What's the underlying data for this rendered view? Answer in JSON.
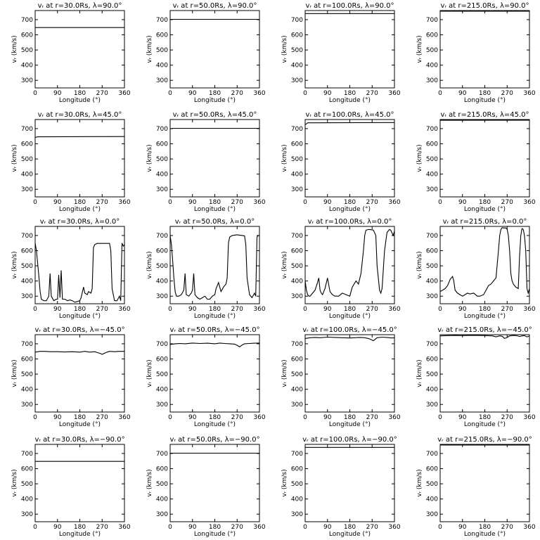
{
  "xlabel": "Longitude (°)",
  "ylabel": "vᵣ (km/s)",
  "xticks": [
    "0",
    "90",
    "180",
    "270",
    "360"
  ],
  "yticks": [
    "300",
    "400",
    "500",
    "600",
    "700"
  ],
  "chart_data": [
    {
      "type": "line",
      "title": "vᵣ at r=30.0Rs, λ=90.0°",
      "xlim": [
        0,
        360
      ],
      "ylim": [
        250,
        760
      ],
      "x": [
        0,
        360
      ],
      "y": [
        648,
        648
      ]
    },
    {
      "type": "line",
      "title": "vᵣ at r=50.0Rs, λ=90.0°",
      "xlim": [
        0,
        360
      ],
      "ylim": [
        250,
        760
      ],
      "x": [
        0,
        360
      ],
      "y": [
        702,
        702
      ]
    },
    {
      "type": "line",
      "title": "vᵣ at r=100.0Rs, λ=90.0°",
      "xlim": [
        0,
        360
      ],
      "ylim": [
        250,
        760
      ],
      "x": [
        0,
        360
      ],
      "y": [
        740,
        740
      ]
    },
    {
      "type": "line",
      "title": "vᵣ at r=215.0Rs, λ=90.0°",
      "xlim": [
        0,
        360
      ],
      "ylim": [
        250,
        760
      ],
      "x": [
        0,
        360
      ],
      "y": [
        756,
        756
      ]
    },
    {
      "type": "line",
      "title": "vᵣ at r=30.0Rs, λ=45.0°",
      "xlim": [
        0,
        360
      ],
      "ylim": [
        250,
        760
      ],
      "x": [
        0,
        10,
        360
      ],
      "y": [
        642,
        646,
        648
      ]
    },
    {
      "type": "line",
      "title": "vᵣ at r=50.0Rs, λ=45.0°",
      "xlim": [
        0,
        360
      ],
      "ylim": [
        250,
        760
      ],
      "x": [
        0,
        10,
        360
      ],
      "y": [
        698,
        702,
        702
      ]
    },
    {
      "type": "line",
      "title": "vᵣ at r=100.0Rs, λ=45.0°",
      "xlim": [
        0,
        360
      ],
      "ylim": [
        250,
        760
      ],
      "x": [
        0,
        10,
        360
      ],
      "y": [
        725,
        738,
        740
      ]
    },
    {
      "type": "line",
      "title": "vᵣ at r=215.0Rs, λ=45.0°",
      "xlim": [
        0,
        360
      ],
      "ylim": [
        250,
        760
      ],
      "x": [
        0,
        360
      ],
      "y": [
        755,
        756
      ]
    },
    {
      "type": "line",
      "title": "vᵣ at r=30.0Rs, λ=0.0°",
      "xlim": [
        0,
        360
      ],
      "ylim": [
        250,
        760
      ],
      "x": [
        0,
        5,
        10,
        15,
        20,
        25,
        35,
        45,
        55,
        60,
        65,
        75,
        85,
        90,
        95,
        100,
        105,
        110,
        120,
        130,
        140,
        150,
        160,
        170,
        180,
        185,
        195,
        200,
        210,
        215,
        225,
        230,
        235,
        240,
        250,
        270,
        290,
        300,
        305,
        310,
        320,
        330,
        340,
        345,
        350,
        355,
        360
      ],
      "y": [
        650,
        600,
        520,
        430,
        330,
        280,
        270,
        270,
        300,
        450,
        300,
        270,
        280,
        280,
        440,
        290,
        470,
        280,
        280,
        270,
        275,
        270,
        260,
        265,
        270,
        290,
        360,
        320,
        310,
        330,
        320,
        350,
        620,
        640,
        648,
        648,
        648,
        648,
        600,
        350,
        270,
        270,
        300,
        270,
        650,
        630,
        640
      ]
    },
    {
      "type": "line",
      "title": "vᵣ at r=50.0Rs, λ=0.0°",
      "xlim": [
        0,
        360
      ],
      "ylim": [
        250,
        760
      ],
      "x": [
        0,
        5,
        10,
        15,
        20,
        25,
        35,
        45,
        55,
        60,
        65,
        75,
        85,
        90,
        95,
        100,
        110,
        120,
        130,
        140,
        150,
        160,
        170,
        180,
        185,
        195,
        205,
        215,
        225,
        230,
        235,
        240,
        250,
        270,
        290,
        300,
        305,
        310,
        320,
        330,
        340,
        345,
        350,
        355,
        360
      ],
      "y": [
        700,
        640,
        540,
        420,
        330,
        300,
        300,
        310,
        340,
        450,
        310,
        300,
        320,
        340,
        450,
        310,
        290,
        280,
        290,
        300,
        280,
        280,
        300,
        310,
        350,
        390,
        330,
        360,
        380,
        420,
        650,
        690,
        700,
        705,
        700,
        698,
        640,
        420,
        310,
        290,
        320,
        300,
        690,
        700,
        700
      ]
    },
    {
      "type": "line",
      "title": "vᵣ at r=100.0Rs, λ=0.0°",
      "xlim": [
        0,
        360
      ],
      "ylim": [
        250,
        760
      ],
      "x": [
        0,
        5,
        10,
        15,
        20,
        30,
        40,
        50,
        55,
        60,
        65,
        70,
        80,
        90,
        100,
        110,
        120,
        135,
        150,
        165,
        180,
        190,
        205,
        215,
        225,
        235,
        240,
        245,
        255,
        265,
        275,
        285,
        290,
        300,
        305,
        310,
        320,
        330,
        340,
        345,
        355,
        360
      ],
      "y": [
        400,
        340,
        310,
        300,
        300,
        320,
        340,
        390,
        420,
        340,
        320,
        310,
        350,
        420,
        330,
        310,
        300,
        300,
        320,
        310,
        300,
        360,
        400,
        380,
        450,
        600,
        700,
        735,
        740,
        738,
        736,
        700,
        500,
        340,
        320,
        350,
        600,
        720,
        740,
        735,
        700,
        730
      ]
    },
    {
      "type": "line",
      "title": "vᵣ at r=215.0Rs, λ=0.0°",
      "xlim": [
        0,
        360
      ],
      "ylim": [
        250,
        760
      ],
      "x": [
        0,
        10,
        20,
        30,
        40,
        50,
        55,
        60,
        70,
        80,
        90,
        100,
        110,
        120,
        135,
        150,
        160,
        175,
        185,
        195,
        205,
        215,
        225,
        235,
        240,
        245,
        250,
        255,
        265,
        270,
        275,
        280,
        285,
        290,
        295,
        300,
        305,
        315,
        320,
        325,
        330,
        335,
        340,
        345,
        350,
        355,
        360
      ],
      "y": [
        330,
        340,
        350,
        370,
        410,
        430,
        400,
        340,
        320,
        310,
        300,
        310,
        320,
        315,
        320,
        300,
        300,
        310,
        340,
        370,
        380,
        400,
        420,
        600,
        700,
        740,
        752,
        750,
        750,
        740,
        700,
        600,
        450,
        400,
        380,
        370,
        360,
        350,
        560,
        700,
        745,
        740,
        700,
        600,
        350,
        320,
        350
      ]
    },
    {
      "type": "line",
      "title": "vᵣ at r=30.0Rs, λ=−45.0°",
      "xlim": [
        0,
        360
      ],
      "ylim": [
        250,
        760
      ],
      "x": [
        0,
        20,
        40,
        60,
        90,
        120,
        150,
        180,
        200,
        220,
        240,
        255,
        265,
        270,
        280,
        290,
        300,
        320,
        340,
        360
      ],
      "y": [
        645,
        650,
        650,
        648,
        648,
        646,
        648,
        645,
        650,
        645,
        648,
        640,
        635,
        630,
        638,
        645,
        650,
        648,
        650,
        650
      ]
    },
    {
      "type": "line",
      "title": "vᵣ at r=50.0Rs, λ=−45.0°",
      "xlim": [
        0,
        360
      ],
      "ylim": [
        250,
        760
      ],
      "x": [
        0,
        20,
        40,
        60,
        90,
        120,
        150,
        180,
        200,
        220,
        240,
        260,
        270,
        280,
        290,
        300,
        320,
        340,
        360
      ],
      "y": [
        695,
        700,
        702,
        700,
        705,
        702,
        704,
        700,
        705,
        702,
        700,
        698,
        690,
        680,
        692,
        700,
        702,
        704,
        705
      ]
    },
    {
      "type": "line",
      "title": "vᵣ at r=100.0Rs, λ=−45.0°",
      "xlim": [
        0,
        360
      ],
      "ylim": [
        250,
        760
      ],
      "x": [
        0,
        20,
        40,
        60,
        90,
        120,
        150,
        180,
        200,
        220,
        240,
        255,
        265,
        275,
        290,
        310,
        330,
        350,
        360
      ],
      "y": [
        735,
        740,
        742,
        740,
        744,
        742,
        740,
        738,
        740,
        742,
        740,
        735,
        728,
        720,
        740,
        744,
        742,
        738,
        740
      ]
    },
    {
      "type": "line",
      "title": "vᵣ at r=215.0Rs, λ=−45.0°",
      "xlim": [
        0,
        360
      ],
      "ylim": [
        250,
        760
      ],
      "x": [
        0,
        30,
        60,
        90,
        120,
        150,
        180,
        210,
        225,
        240,
        250,
        260,
        270,
        280,
        290,
        300,
        310,
        320,
        330,
        340,
        350,
        360
      ],
      "y": [
        752,
        754,
        755,
        754,
        756,
        755,
        754,
        752,
        746,
        752,
        750,
        735,
        742,
        752,
        754,
        755,
        753,
        748,
        752,
        754,
        745,
        752
      ]
    },
    {
      "type": "line",
      "title": "vᵣ at r=30.0Rs, λ=−90.0°",
      "xlim": [
        0,
        360
      ],
      "ylim": [
        250,
        760
      ],
      "x": [
        0,
        360
      ],
      "y": [
        648,
        648
      ]
    },
    {
      "type": "line",
      "title": "vᵣ at r=50.0Rs, λ=−90.0°",
      "xlim": [
        0,
        360
      ],
      "ylim": [
        250,
        760
      ],
      "x": [
        0,
        360
      ],
      "y": [
        702,
        702
      ]
    },
    {
      "type": "line",
      "title": "vᵣ at r=100.0Rs, λ=−90.0°",
      "xlim": [
        0,
        360
      ],
      "ylim": [
        250,
        760
      ],
      "x": [
        0,
        360
      ],
      "y": [
        740,
        740
      ]
    },
    {
      "type": "line",
      "title": "vᵣ at r=215.0Rs, λ=−90.0°",
      "xlim": [
        0,
        360
      ],
      "ylim": [
        250,
        760
      ],
      "x": [
        0,
        360
      ],
      "y": [
        756,
        756
      ]
    }
  ]
}
